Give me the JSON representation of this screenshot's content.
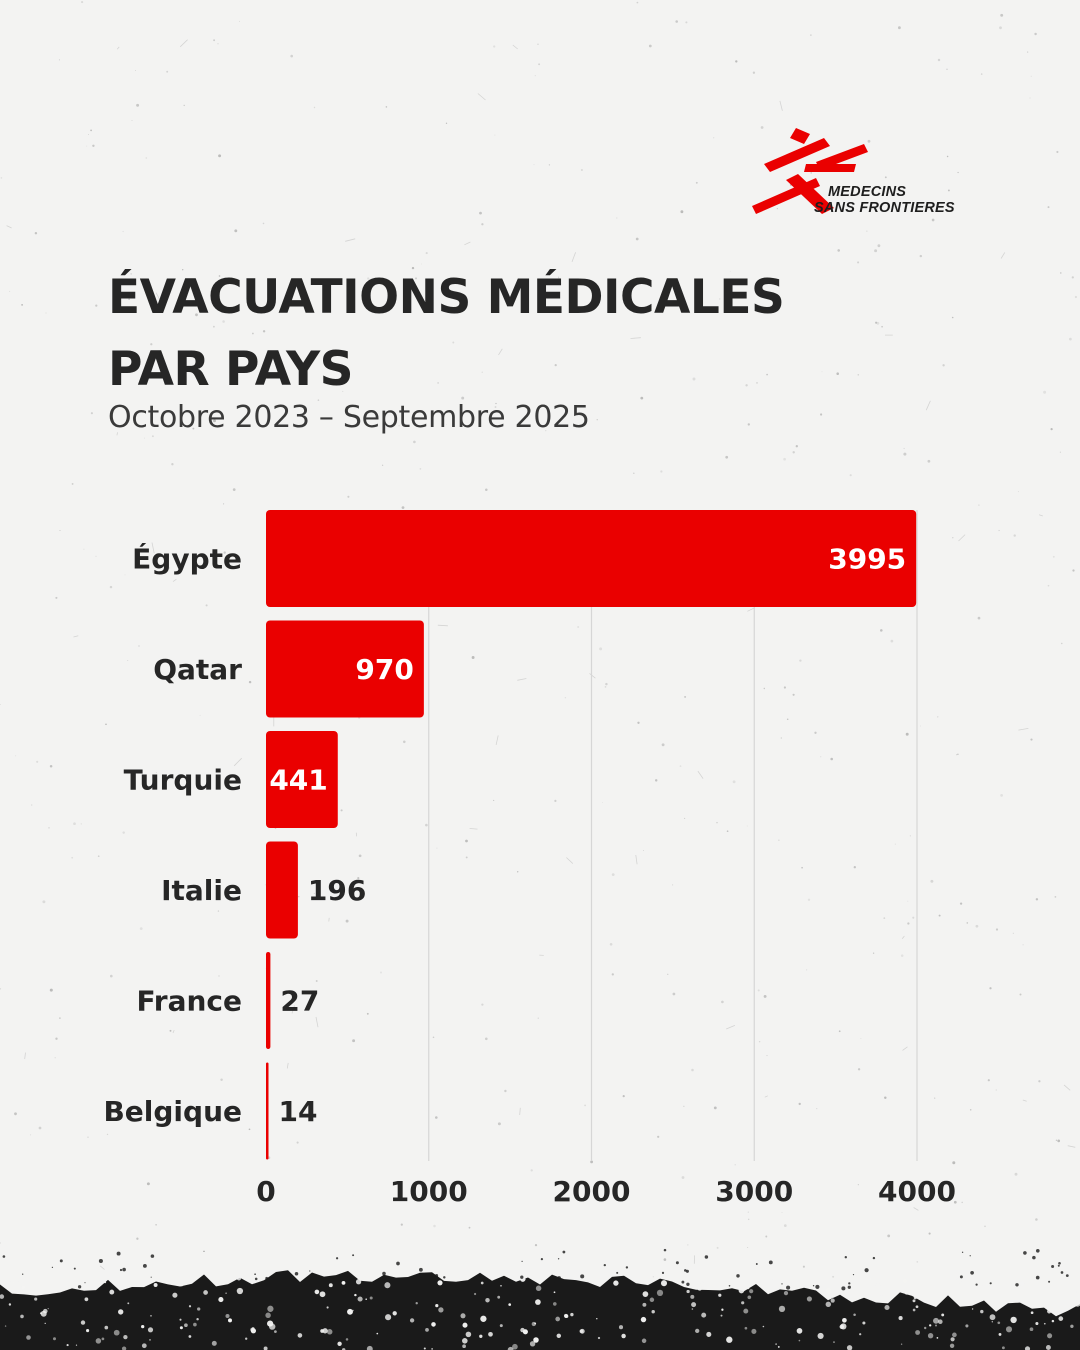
{
  "logo": {
    "line1": "MEDECINS",
    "line2": "SANS FRONTIERES",
    "icon": "msf-running-man-icon",
    "color": "#ea0000"
  },
  "title": {
    "line1": "ÉVACUATIONS MÉDICALES",
    "line2": "PAR PAYS"
  },
  "subtitle": "Octobre 2023 – Septembre 2025",
  "chart_data": {
    "type": "bar",
    "orientation": "horizontal",
    "categories": [
      "Égypte",
      "Qatar",
      "Turquie",
      "Italie",
      "France",
      "Belgique"
    ],
    "values": [
      3995,
      970,
      441,
      196,
      27,
      14
    ],
    "xlim": [
      0,
      4000
    ],
    "xticks": [
      0,
      1000,
      2000,
      3000,
      4000
    ],
    "grid": true,
    "bar_color": "#ea0000",
    "label_inside_color": "#ffffff",
    "label_outside_color": "#262626"
  }
}
